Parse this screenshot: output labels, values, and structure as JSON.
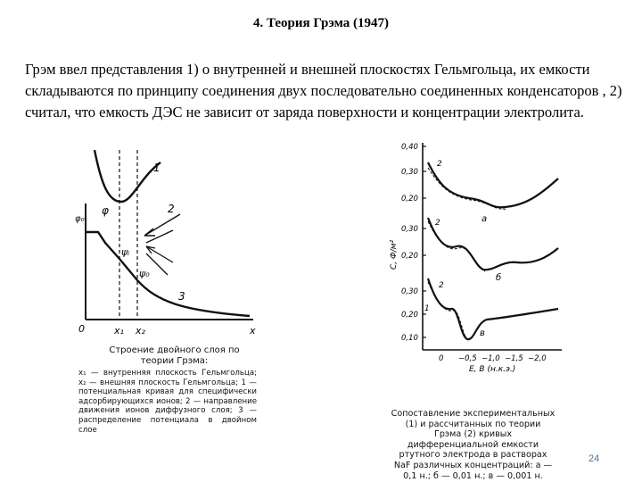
{
  "slide": {
    "title": "4. Теория Грэма (1947)",
    "paragraph": "Грэм ввел представления 1) о внутренней и внешней плоскостях Гельмгольца, их емкости складываются по принципу соединения двух последовательно соединенных конденсаторов , 2) считал, что емкость ДЭС не зависит от заряда поверхности и концентрации электролита.",
    "page_number": "24"
  },
  "left_figure": {
    "labels": {
      "psi0": "φ₀",
      "phi": "φ",
      "psi_i": "ψᵢ",
      "psi_0": "ψ₀",
      "n1": "1",
      "n2": "2",
      "n3": "3",
      "origin": "0",
      "x1": "x₁",
      "x2": "x₂",
      "x": "x"
    },
    "caption_head": "Строение двойного слоя по теории Грэма:",
    "caption_body": "x₁ — внутренняя плоскость Гельмгольца; x₂ — внешняя плоскость Гельмгольца; 1 — потенциальная кривая для специфически адсорбирующихся ионов; 2 — направление движения ионов диффузного слоя; 3 — распределение потенциала в двойном слое"
  },
  "right_figure": {
    "y_axis_label": "C, Ф/м²",
    "x_axis_label": "E, B (н.к.э.)",
    "panels": [
      {
        "letter": "а",
        "ticks": [
          "0,40",
          "0,30",
          "0,20"
        ]
      },
      {
        "letter": "б",
        "ticks": [
          "0,30",
          "0,20"
        ]
      },
      {
        "letter": "в",
        "ticks": [
          "0,30",
          "0,20",
          "0,10"
        ]
      }
    ],
    "curve_labels": {
      "one": "1",
      "two": "2"
    },
    "x_ticks": [
      "0",
      "−0,5",
      "−1,0",
      "−1,5",
      "−2,0"
    ],
    "caption": "Сопоставление экспериментальных (1) и рассчитанных по теории Грэма (2) кривых дифференциальной емкости ртутного электрода в растворах NaF различных концентраций: а — 0,1 н.; б — 0,01 н.; в — 0,001 н."
  }
}
